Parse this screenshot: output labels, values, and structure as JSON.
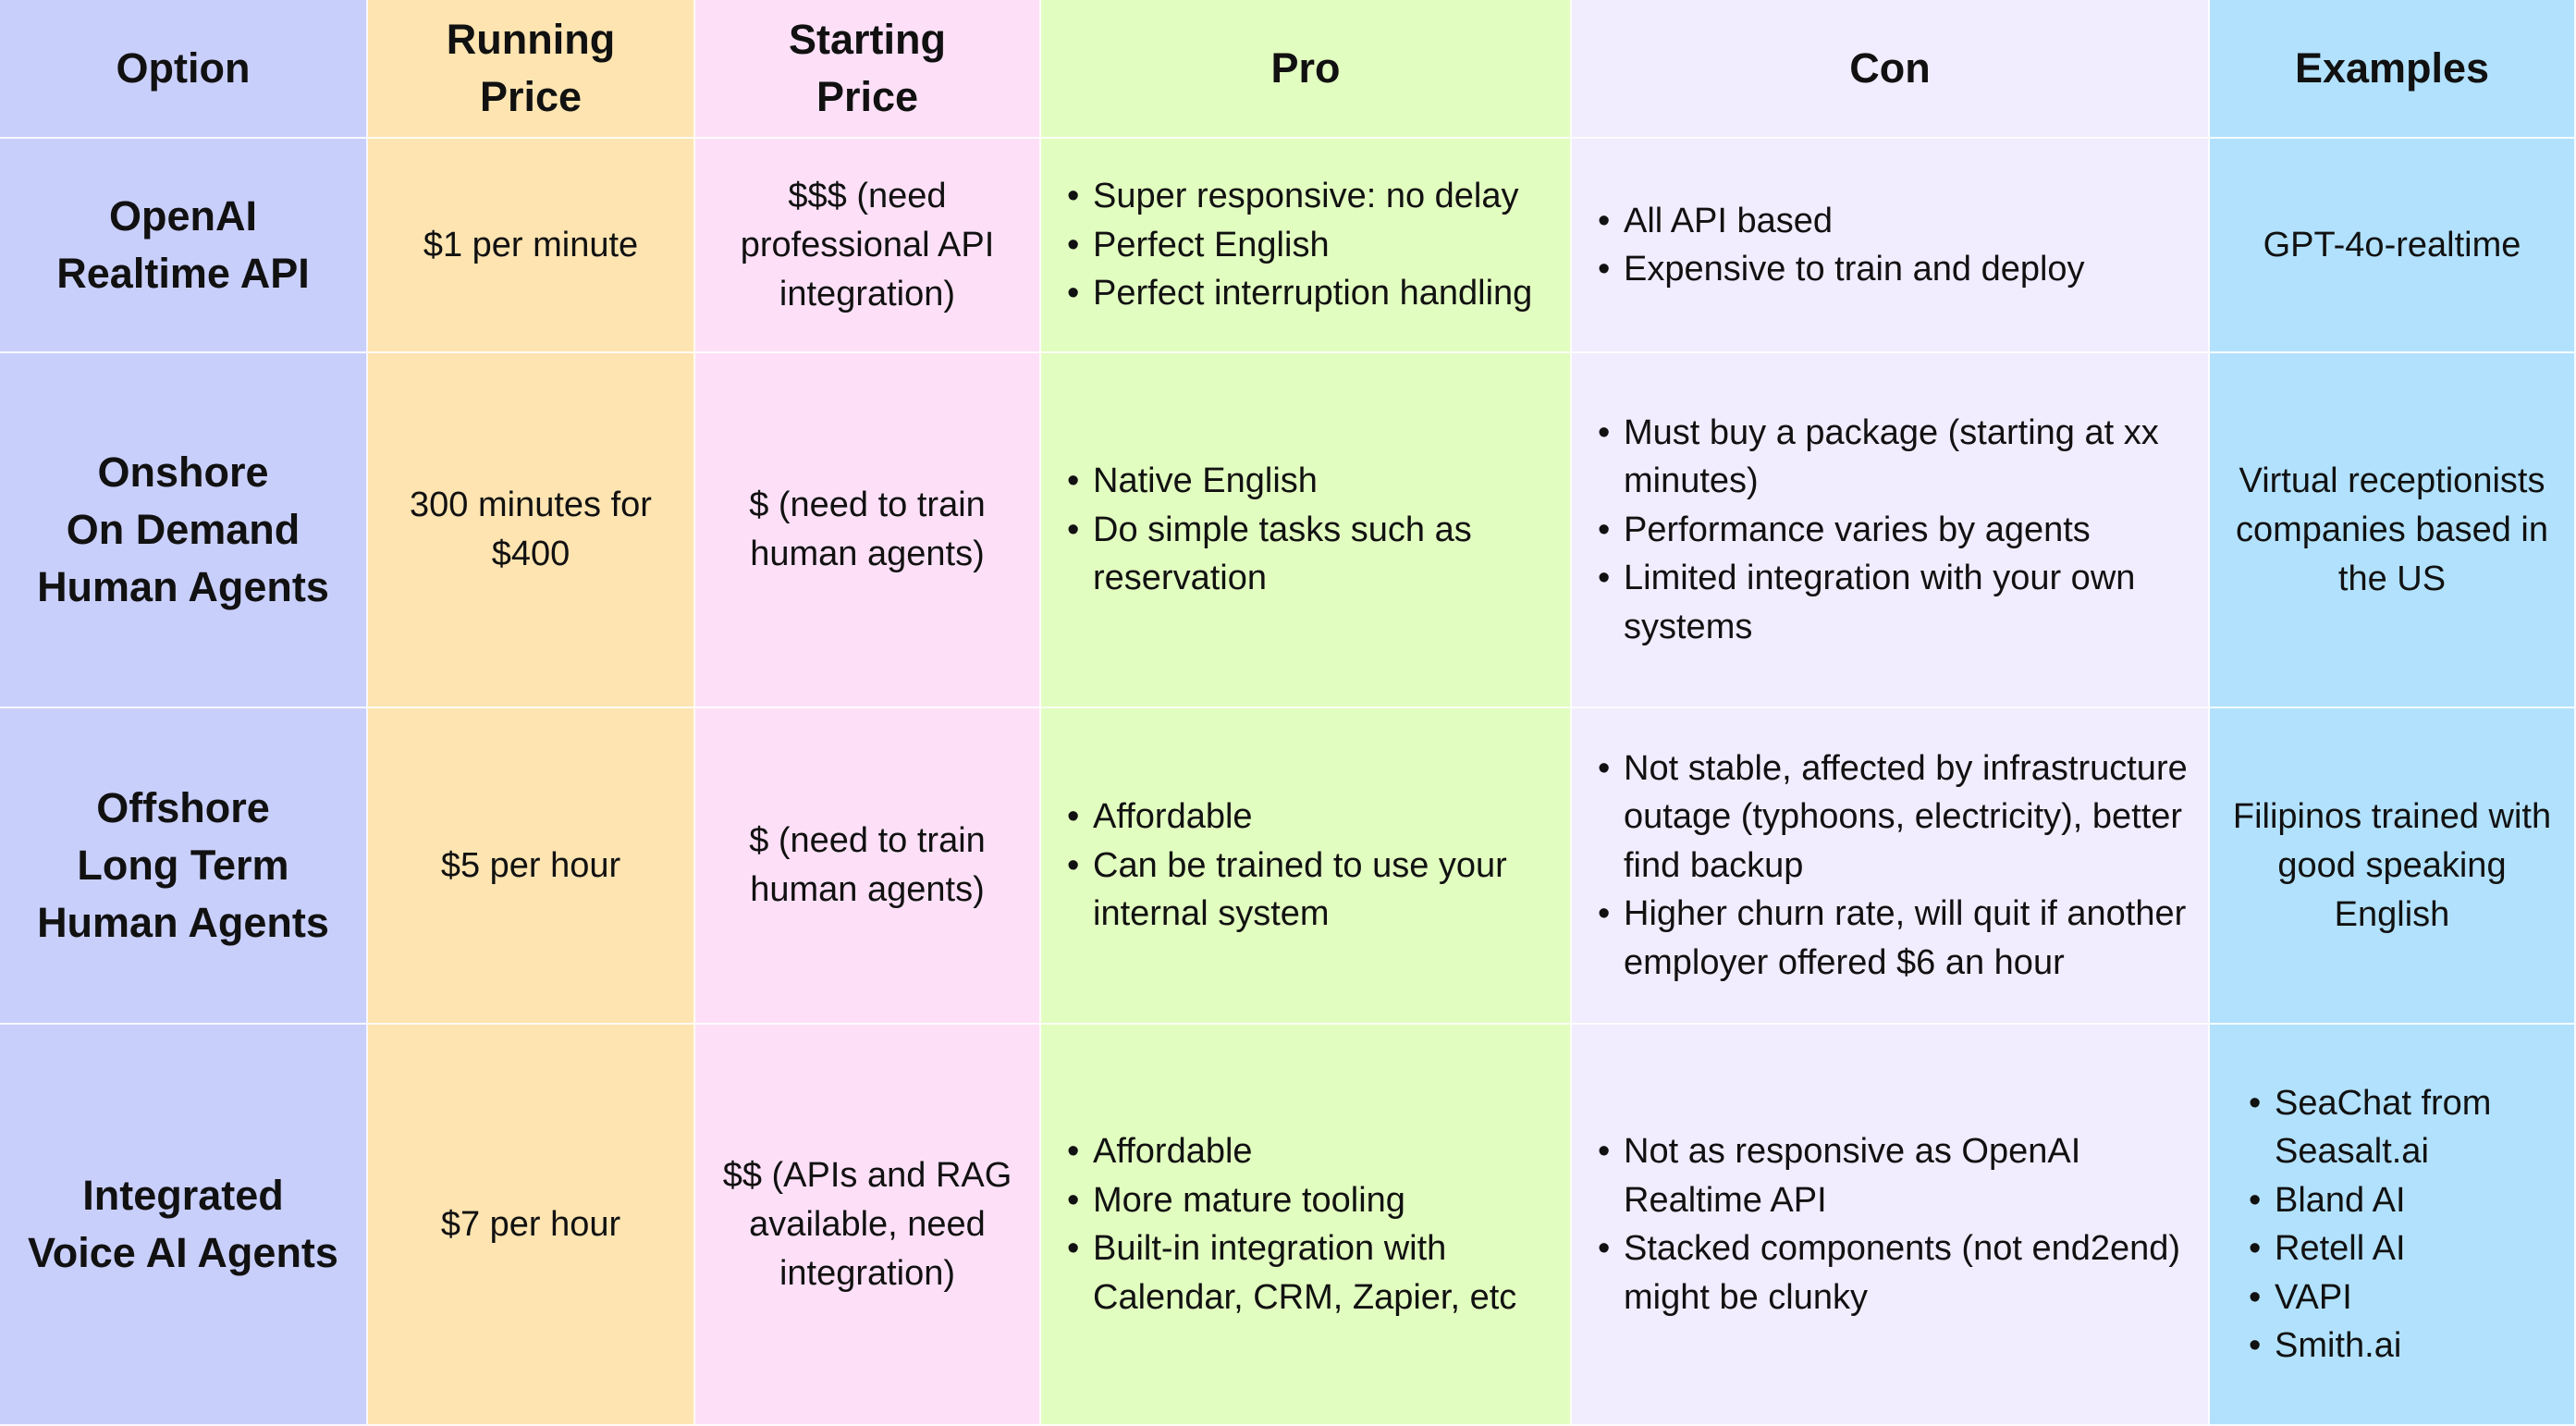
{
  "headers": [
    "Option",
    "Running\nPrice",
    "Starting\nPrice",
    "Pro",
    "Con",
    "Examples"
  ],
  "rows": [
    {
      "option": "OpenAI\nRealtime API",
      "running_price": "$1 per minute",
      "starting_price": "$$$ (need\nprofessional API\nintegration)",
      "pros": [
        "Super responsive: no delay",
        "Perfect English",
        "Perfect interruption handling"
      ],
      "cons": [
        "All API based",
        "Expensive to train and deploy"
      ],
      "examples": "GPT-4o-realtime"
    },
    {
      "option": "Onshore\nOn Demand\nHuman Agents",
      "running_price": "300 minutes for\n$400",
      "starting_price": "$ (need to train\nhuman agents)",
      "pros": [
        "Native English",
        "Do simple tasks such as reservation"
      ],
      "cons": [
        "Must buy a package (starting at xx minutes)",
        "Performance varies by agents",
        "Limited integration with your own systems"
      ],
      "examples": "Virtual receptionists\ncompanies based in\nthe US"
    },
    {
      "option": "Offshore\nLong Term\nHuman Agents",
      "running_price": "$5 per hour",
      "starting_price": "$ (need to train\nhuman agents)",
      "pros": [
        "Affordable",
        "Can be trained to use your internal system"
      ],
      "cons": [
        "Not stable, affected by infrastructure outage (typhoons, electricity), better find backup",
        "Higher churn rate, will quit if another employer offered $6 an hour"
      ],
      "examples": "Filipinos trained with\ngood speaking\nEnglish"
    },
    {
      "option": "Integrated\nVoice AI Agents",
      "running_price": "$7 per hour",
      "starting_price": "$$ (APIs and RAG\navailable, need\nintegration)",
      "pros": [
        "Affordable",
        "More mature tooling",
        "Built-in integration with Calendar, CRM, Zapier, etc"
      ],
      "cons": [
        "Not as responsive as OpenAI Realtime API",
        "Stacked components (not end2end) might be clunky"
      ],
      "examples": [
        "SeaChat from Seasalt.ai",
        "Bland AI",
        "Retell AI",
        "VAPI",
        "Smith.ai"
      ]
    }
  ],
  "colors": {
    "option": "#c9cffb",
    "running_price": "#fde4b1",
    "starting_price": "#fde0f7",
    "pro": "#e2fdc0",
    "con": "#f1ecfe",
    "examples": "#b2e1fd"
  }
}
